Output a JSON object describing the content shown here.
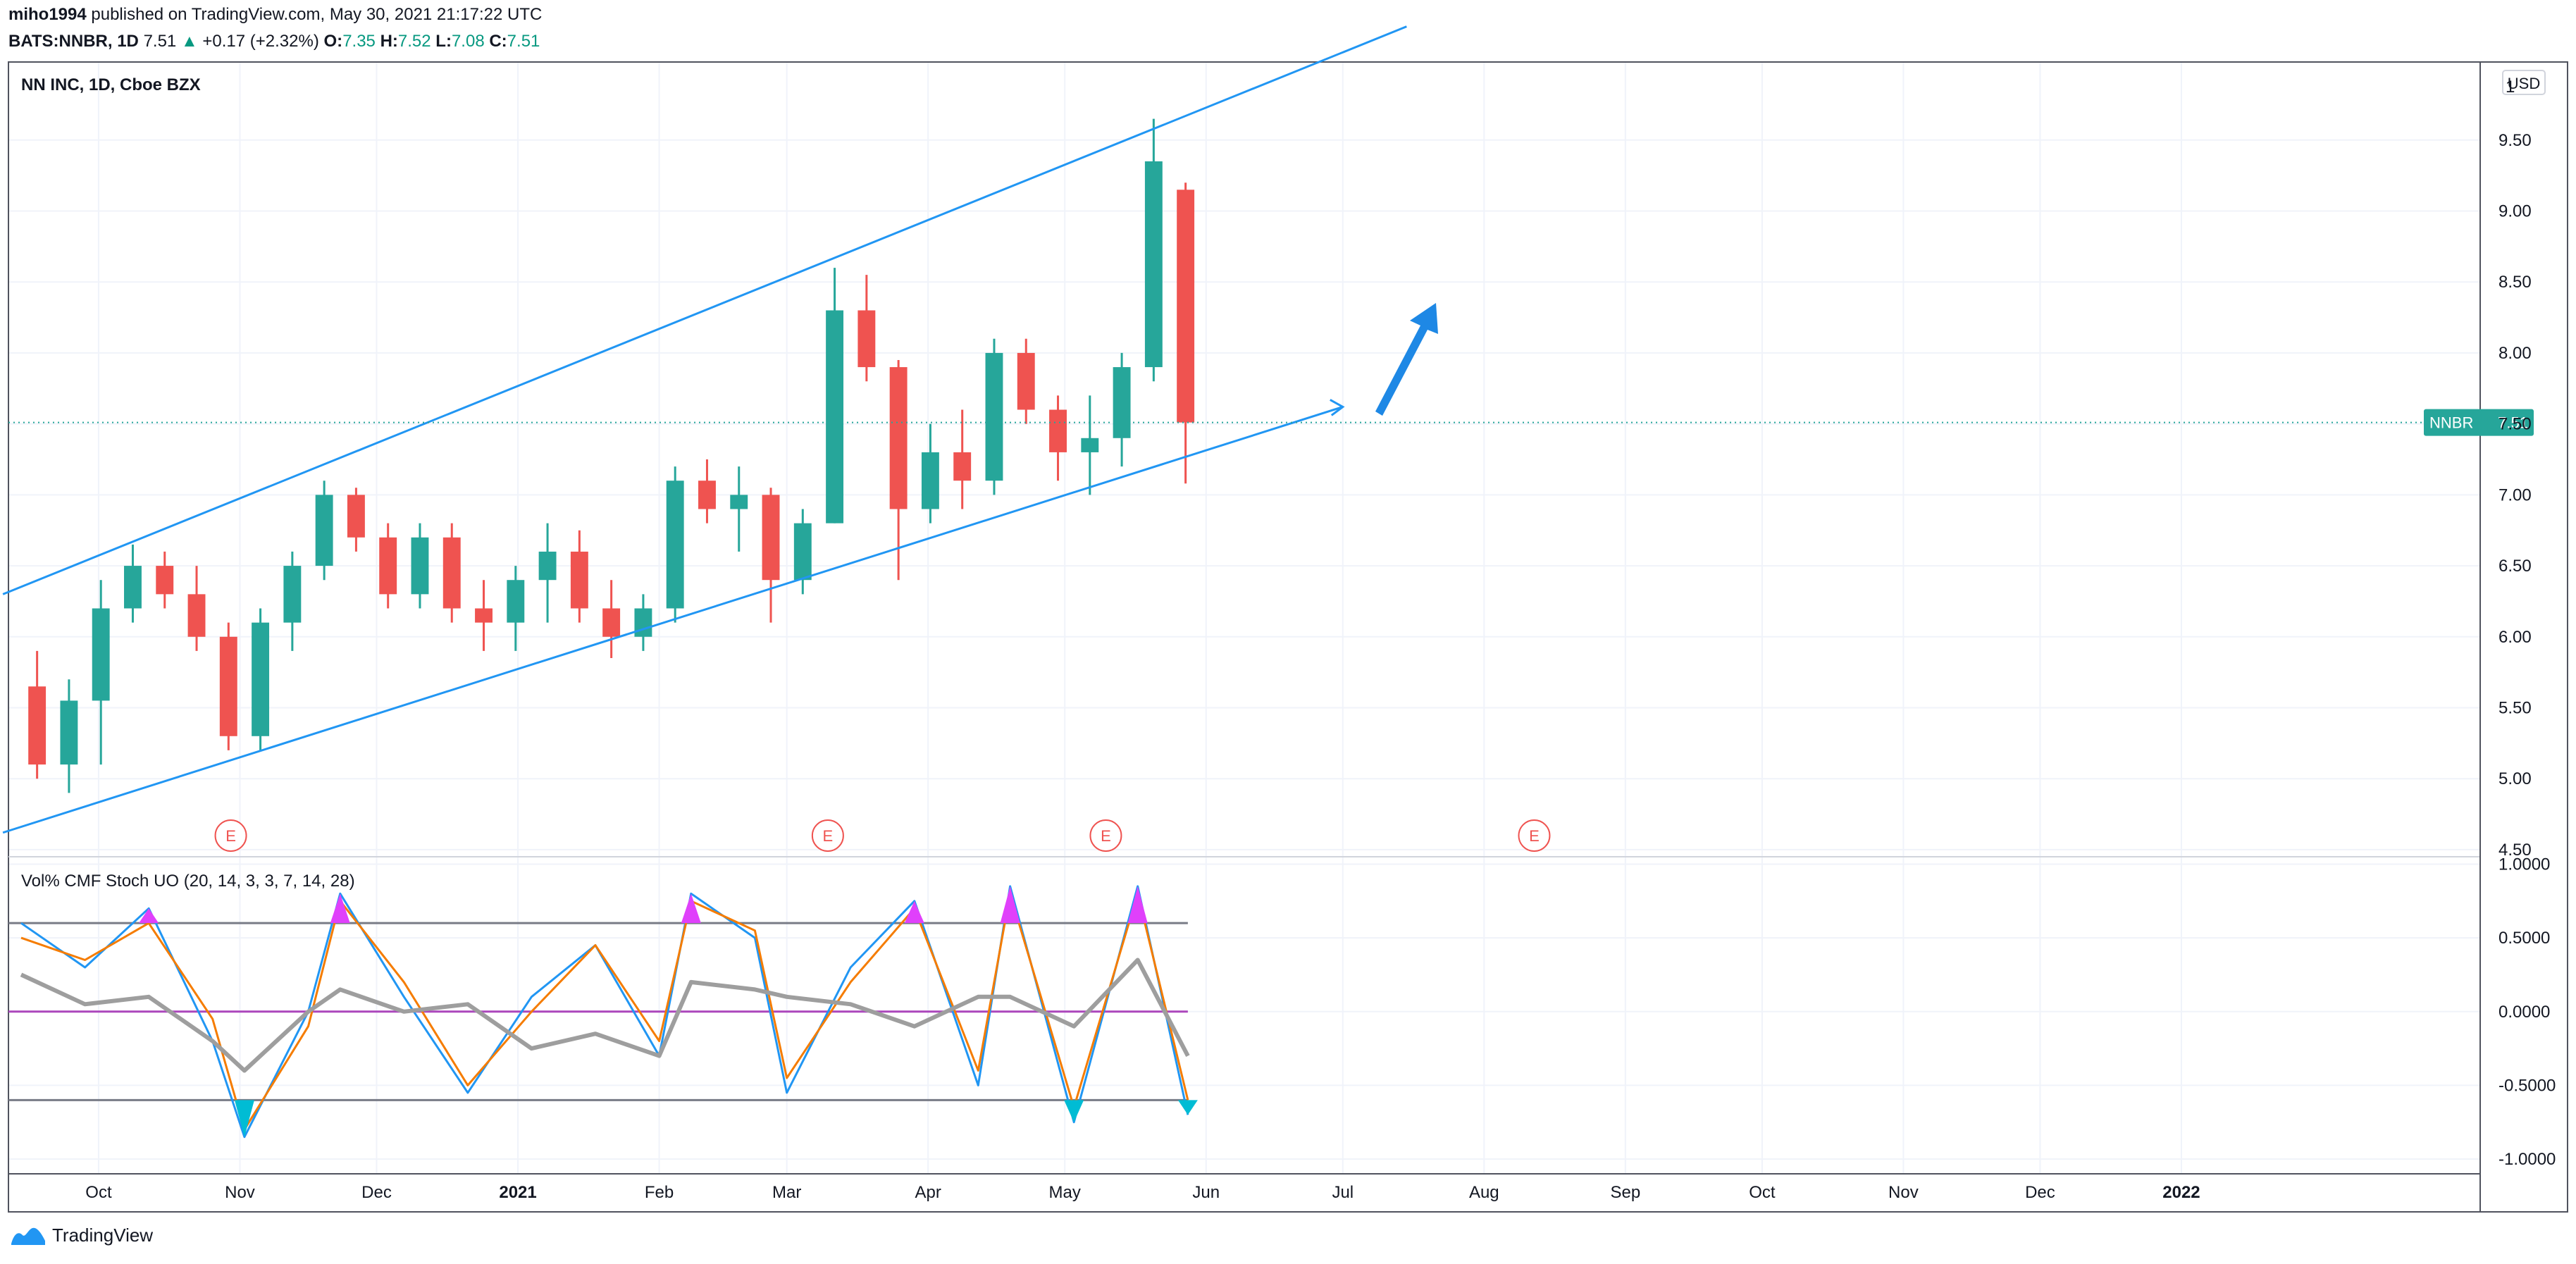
{
  "header": {
    "author": "miho1994",
    "published_text": "published on TradingView.com, May 30, 2021 21:17:22 UTC",
    "symbol": "BATS:NNBR, 1D",
    "last": "7.51",
    "change_arrow": "▲",
    "change": "+0.17 (+2.32%)",
    "open_label": "O:",
    "open": "7.35",
    "high_label": "H:",
    "high": "7.52",
    "low_label": "L:",
    "low": "7.08",
    "close_label": "C:",
    "close": "7.51"
  },
  "main_pane": {
    "title": "NN INC, 1D, Cboe BZX",
    "currency": "USD",
    "price_tag_symbol": "NNBR",
    "price_tag_value": "7.51",
    "earnings_marker": "E"
  },
  "indicator_pane": {
    "title": "Vol% CMF Stoch UO (20, 14, 3, 3, 7, 14, 28)"
  },
  "colors": {
    "up": "#26a69a",
    "down": "#ef5350",
    "channel": "#2196f3",
    "stoch_k": "#2196f3",
    "stoch_d": "#f57c00",
    "cmf": "#9e9e9e",
    "zero_line": "#ab47bc",
    "overbought_fill": "#e040fb",
    "oversold_fill": "#00bcd4",
    "grid": "#f0f3fa",
    "border": "#50535e"
  },
  "footer": {
    "brand": "TradingView",
    "logo_icon": "tradingview-logo-icon"
  },
  "chart_data": [
    {
      "type": "candlestick",
      "title": "NN INC, 1D, Cboe BZX",
      "x_ticks": [
        "Oct",
        "Nov",
        "Dec",
        "2021",
        "Feb",
        "Mar",
        "Apr",
        "May",
        "Jun",
        "Jul",
        "Aug",
        "Sep",
        "Oct",
        "Nov",
        "Dec",
        "2022"
      ],
      "y_ticks": [
        "9.50",
        "9.00",
        "8.50",
        "8.00",
        "7.50",
        "7.00",
        "6.50",
        "6.00",
        "5.50",
        "5.00",
        "4.50"
      ],
      "y_top_partial_tick": "1",
      "ylim": [
        4.45,
        10.05
      ],
      "last_price": 7.51,
      "candles_sampled": [
        {
          "date": "2020-09-14",
          "o": 5.65,
          "h": 5.9,
          "l": 5.0,
          "c": 5.1
        },
        {
          "date": "2020-09-21",
          "o": 5.1,
          "h": 5.7,
          "l": 4.9,
          "c": 5.55
        },
        {
          "date": "2020-09-28",
          "o": 5.55,
          "h": 6.4,
          "l": 5.1,
          "c": 6.2
        },
        {
          "date": "2020-10-05",
          "o": 6.2,
          "h": 6.65,
          "l": 6.1,
          "c": 6.5
        },
        {
          "date": "2020-10-12",
          "o": 6.5,
          "h": 6.6,
          "l": 6.2,
          "c": 6.3
        },
        {
          "date": "2020-10-19",
          "o": 6.3,
          "h": 6.5,
          "l": 5.9,
          "c": 6.0
        },
        {
          "date": "2020-10-26",
          "o": 6.0,
          "h": 6.1,
          "l": 5.2,
          "c": 5.3
        },
        {
          "date": "2020-11-02",
          "o": 5.3,
          "h": 6.2,
          "l": 5.2,
          "c": 6.1
        },
        {
          "date": "2020-11-09",
          "o": 6.1,
          "h": 6.6,
          "l": 5.9,
          "c": 6.5
        },
        {
          "date": "2020-11-16",
          "o": 6.5,
          "h": 7.1,
          "l": 6.4,
          "c": 7.0
        },
        {
          "date": "2020-11-23",
          "o": 7.0,
          "h": 7.05,
          "l": 6.6,
          "c": 6.7
        },
        {
          "date": "2020-11-30",
          "o": 6.7,
          "h": 6.8,
          "l": 6.2,
          "c": 6.3
        },
        {
          "date": "2020-12-07",
          "o": 6.3,
          "h": 6.8,
          "l": 6.2,
          "c": 6.7
        },
        {
          "date": "2020-12-14",
          "o": 6.7,
          "h": 6.8,
          "l": 6.1,
          "c": 6.2
        },
        {
          "date": "2020-12-21",
          "o": 6.2,
          "h": 6.4,
          "l": 5.9,
          "c": 6.1
        },
        {
          "date": "2020-12-28",
          "o": 6.1,
          "h": 6.5,
          "l": 5.9,
          "c": 6.4
        },
        {
          "date": "2021-01-04",
          "o": 6.4,
          "h": 6.8,
          "l": 6.1,
          "c": 6.6
        },
        {
          "date": "2021-01-11",
          "o": 6.6,
          "h": 6.75,
          "l": 6.1,
          "c": 6.2
        },
        {
          "date": "2021-01-18",
          "o": 6.2,
          "h": 6.4,
          "l": 5.85,
          "c": 6.0
        },
        {
          "date": "2021-01-25",
          "o": 6.0,
          "h": 6.3,
          "l": 5.9,
          "c": 6.2
        },
        {
          "date": "2021-02-01",
          "o": 6.2,
          "h": 7.2,
          "l": 6.1,
          "c": 7.1
        },
        {
          "date": "2021-02-08",
          "o": 7.1,
          "h": 7.25,
          "l": 6.8,
          "c": 6.9
        },
        {
          "date": "2021-02-15",
          "o": 6.9,
          "h": 7.2,
          "l": 6.6,
          "c": 7.0
        },
        {
          "date": "2021-02-22",
          "o": 7.0,
          "h": 7.05,
          "l": 6.1,
          "c": 6.4
        },
        {
          "date": "2021-03-01",
          "o": 6.4,
          "h": 6.9,
          "l": 6.3,
          "c": 6.8
        },
        {
          "date": "2021-03-08",
          "o": 6.8,
          "h": 8.6,
          "l": 6.8,
          "c": 8.3
        },
        {
          "date": "2021-03-15",
          "o": 8.3,
          "h": 8.55,
          "l": 7.8,
          "c": 7.9
        },
        {
          "date": "2021-03-22",
          "o": 7.9,
          "h": 7.95,
          "l": 6.4,
          "c": 6.9
        },
        {
          "date": "2021-03-29",
          "o": 6.9,
          "h": 7.5,
          "l": 6.8,
          "c": 7.3
        },
        {
          "date": "2021-04-05",
          "o": 7.3,
          "h": 7.6,
          "l": 6.9,
          "c": 7.1
        },
        {
          "date": "2021-04-12",
          "o": 7.1,
          "h": 8.1,
          "l": 7.0,
          "c": 8.0
        },
        {
          "date": "2021-04-19",
          "o": 8.0,
          "h": 8.1,
          "l": 7.5,
          "c": 7.6
        },
        {
          "date": "2021-04-26",
          "o": 7.6,
          "h": 7.7,
          "l": 7.1,
          "c": 7.3
        },
        {
          "date": "2021-05-03",
          "o": 7.3,
          "h": 7.7,
          "l": 7.0,
          "c": 7.4
        },
        {
          "date": "2021-05-10",
          "o": 7.4,
          "h": 8.0,
          "l": 7.2,
          "c": 7.9
        },
        {
          "date": "2021-05-17",
          "o": 7.9,
          "h": 9.65,
          "l": 7.8,
          "c": 9.35
        },
        {
          "date": "2021-05-24",
          "o": 9.15,
          "h": 9.2,
          "l": 7.08,
          "c": 7.51
        }
      ],
      "channel_upper": [
        {
          "date": "2020-09-10",
          "price": 6.3
        },
        {
          "date": "2021-07-15",
          "price": 10.3
        }
      ],
      "channel_lower": [
        {
          "date": "2020-09-10",
          "price": 4.62
        },
        {
          "date": "2021-07-01",
          "price": 7.62
        }
      ]
    },
    {
      "type": "line",
      "title": "Vol% CMF Stoch UO (20, 14, 3, 3, 7, 14, 28)",
      "y_ticks": [
        "1.0000",
        "0.5000",
        "0.0000",
        "-0.5000",
        "-1.0000"
      ],
      "ylim": [
        -1.1,
        1.05
      ],
      "overbought": 0.6,
      "oversold": -0.6,
      "zero": 0.0,
      "x": [
        "2020-09-14",
        "2020-09-28",
        "2020-10-12",
        "2020-10-26",
        "2020-11-02",
        "2020-11-16",
        "2020-11-23",
        "2020-12-07",
        "2020-12-21",
        "2021-01-04",
        "2021-01-18",
        "2021-02-01",
        "2021-02-08",
        "2021-02-22",
        "2021-03-01",
        "2021-03-15",
        "2021-03-29",
        "2021-04-12",
        "2021-04-19",
        "2021-05-03",
        "2021-05-17",
        "2021-05-28"
      ],
      "series": [
        {
          "values": [
            0.6,
            0.3,
            0.7,
            -0.2,
            -0.85,
            0.0,
            0.8,
            0.1,
            -0.55,
            0.1,
            0.45,
            -0.3,
            0.8,
            0.5,
            -0.55,
            0.3,
            0.75,
            -0.5,
            0.85,
            -0.75,
            0.85,
            -0.7
          ]
        },
        {
          "values": [
            0.5,
            0.35,
            0.6,
            -0.05,
            -0.8,
            -0.1,
            0.75,
            0.2,
            -0.5,
            0.0,
            0.45,
            -0.2,
            0.75,
            0.55,
            -0.45,
            0.2,
            0.7,
            -0.4,
            0.8,
            -0.65,
            0.8,
            -0.6
          ]
        },
        {
          "values": [
            0.25,
            0.05,
            0.1,
            -0.2,
            -0.4,
            0.0,
            0.15,
            0.0,
            0.05,
            -0.25,
            -0.15,
            -0.3,
            0.2,
            0.15,
            0.1,
            0.05,
            -0.1,
            0.1,
            0.1,
            -0.1,
            0.35,
            -0.3
          ]
        }
      ]
    }
  ]
}
